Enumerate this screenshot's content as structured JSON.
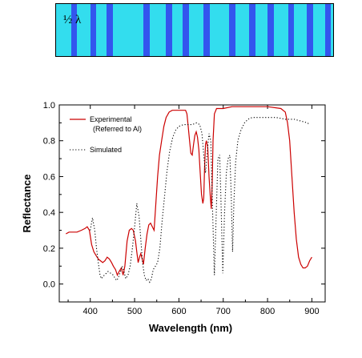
{
  "stack_label": "½ λ",
  "chart_data": {
    "type": "line",
    "title": "",
    "xlabel": "Wavelength (nm)",
    "ylabel": "Reflectance",
    "xlim": [
      330,
      930
    ],
    "ylim": [
      -0.1,
      1.0
    ],
    "xticks": [
      400,
      500,
      600,
      700,
      800,
      900
    ],
    "yticks": [
      0.0,
      0.2,
      0.4,
      0.6,
      0.8,
      1.0
    ],
    "grid": false,
    "legend_position": "top-left",
    "series": [
      {
        "name": "Experimental",
        "name_line2": "(Referred to Al)",
        "style": "solid",
        "color": "#cc0000",
        "points": [
          [
            345,
            0.28
          ],
          [
            352,
            0.29
          ],
          [
            360,
            0.29
          ],
          [
            370,
            0.29
          ],
          [
            380,
            0.3
          ],
          [
            388,
            0.31
          ],
          [
            393,
            0.32
          ],
          [
            398,
            0.3
          ],
          [
            403,
            0.22
          ],
          [
            408,
            0.18
          ],
          [
            413,
            0.16
          ],
          [
            418,
            0.14
          ],
          [
            423,
            0.13
          ],
          [
            428,
            0.12
          ],
          [
            433,
            0.13
          ],
          [
            438,
            0.15
          ],
          [
            443,
            0.14
          ],
          [
            448,
            0.12
          ],
          [
            452,
            0.1
          ],
          [
            457,
            0.08
          ],
          [
            461,
            0.05
          ],
          [
            465,
            0.07
          ],
          [
            470,
            0.09
          ],
          [
            474,
            0.05
          ],
          [
            478,
            0.1
          ],
          [
            483,
            0.24
          ],
          [
            488,
            0.3
          ],
          [
            493,
            0.31
          ],
          [
            497,
            0.3
          ],
          [
            502,
            0.24
          ],
          [
            505,
            0.18
          ],
          [
            508,
            0.12
          ],
          [
            511,
            0.15
          ],
          [
            514,
            0.17
          ],
          [
            517,
            0.14
          ],
          [
            520,
            0.11
          ],
          [
            524,
            0.2
          ],
          [
            528,
            0.28
          ],
          [
            532,
            0.33
          ],
          [
            536,
            0.34
          ],
          [
            540,
            0.32
          ],
          [
            544,
            0.3
          ],
          [
            548,
            0.45
          ],
          [
            552,
            0.6
          ],
          [
            556,
            0.72
          ],
          [
            561,
            0.8
          ],
          [
            566,
            0.88
          ],
          [
            571,
            0.93
          ],
          [
            578,
            0.96
          ],
          [
            585,
            0.97
          ],
          [
            595,
            0.97
          ],
          [
            605,
            0.97
          ],
          [
            615,
            0.97
          ],
          [
            618,
            0.95
          ],
          [
            621,
            0.88
          ],
          [
            624,
            0.8
          ],
          [
            627,
            0.73
          ],
          [
            630,
            0.72
          ],
          [
            633,
            0.78
          ],
          [
            636,
            0.83
          ],
          [
            639,
            0.85
          ],
          [
            642,
            0.82
          ],
          [
            645,
            0.75
          ],
          [
            648,
            0.62
          ],
          [
            651,
            0.5
          ],
          [
            654,
            0.45
          ],
          [
            656,
            0.48
          ],
          [
            658,
            0.66
          ],
          [
            660,
            0.78
          ],
          [
            662,
            0.8
          ],
          [
            665,
            0.76
          ],
          [
            668,
            0.6
          ],
          [
            671,
            0.48
          ],
          [
            673,
            0.42
          ],
          [
            675,
            0.55
          ],
          [
            677,
            0.8
          ],
          [
            680,
            0.95
          ],
          [
            685,
            0.98
          ],
          [
            700,
            0.98
          ],
          [
            720,
            0.99
          ],
          [
            760,
            0.99
          ],
          [
            800,
            0.99
          ],
          [
            830,
            0.98
          ],
          [
            840,
            0.96
          ],
          [
            845,
            0.9
          ],
          [
            850,
            0.8
          ],
          [
            855,
            0.6
          ],
          [
            860,
            0.4
          ],
          [
            865,
            0.25
          ],
          [
            870,
            0.15
          ],
          [
            875,
            0.11
          ],
          [
            880,
            0.09
          ],
          [
            885,
            0.09
          ],
          [
            890,
            0.1
          ],
          [
            895,
            0.13
          ],
          [
            900,
            0.15
          ]
        ]
      },
      {
        "name": "Simulated",
        "style": "dotted",
        "color": "#000000",
        "points": [
          [
            400,
            0.3
          ],
          [
            405,
            0.37
          ],
          [
            410,
            0.3
          ],
          [
            414,
            0.2
          ],
          [
            418,
            0.12
          ],
          [
            422,
            0.05
          ],
          [
            425,
            0.03
          ],
          [
            428,
            0.04
          ],
          [
            432,
            0.05
          ],
          [
            436,
            0.06
          ],
          [
            440,
            0.07
          ],
          [
            446,
            0.06
          ],
          [
            452,
            0.05
          ],
          [
            456,
            0.03
          ],
          [
            460,
            0.02
          ],
          [
            464,
            0.04
          ],
          [
            468,
            0.07
          ],
          [
            472,
            0.1
          ],
          [
            476,
            0.07
          ],
          [
            480,
            0.03
          ],
          [
            485,
            0.05
          ],
          [
            490,
            0.1
          ],
          [
            495,
            0.2
          ],
          [
            500,
            0.32
          ],
          [
            505,
            0.45
          ],
          [
            510,
            0.38
          ],
          [
            514,
            0.25
          ],
          [
            518,
            0.12
          ],
          [
            522,
            0.05
          ],
          [
            526,
            0.02
          ],
          [
            530,
            0.03
          ],
          [
            534,
            0.01
          ],
          [
            538,
            0.03
          ],
          [
            542,
            0.08
          ],
          [
            547,
            0.1
          ],
          [
            552,
            0.12
          ],
          [
            557,
            0.2
          ],
          [
            562,
            0.35
          ],
          [
            568,
            0.5
          ],
          [
            573,
            0.63
          ],
          [
            579,
            0.74
          ],
          [
            586,
            0.82
          ],
          [
            593,
            0.86
          ],
          [
            600,
            0.88
          ],
          [
            610,
            0.89
          ],
          [
            620,
            0.89
          ],
          [
            630,
            0.89
          ],
          [
            640,
            0.9
          ],
          [
            647,
            0.89
          ],
          [
            652,
            0.84
          ],
          [
            656,
            0.72
          ],
          [
            660,
            0.62
          ],
          [
            664,
            0.74
          ],
          [
            668,
            0.84
          ],
          [
            672,
            0.8
          ],
          [
            676,
            0.4
          ],
          [
            680,
            0.05
          ],
          [
            684,
            0.38
          ],
          [
            688,
            0.7
          ],
          [
            692,
            0.72
          ],
          [
            695,
            0.45
          ],
          [
            699,
            0.06
          ],
          [
            703,
            0.4
          ],
          [
            707,
            0.62
          ],
          [
            711,
            0.7
          ],
          [
            715,
            0.72
          ],
          [
            718,
            0.5
          ],
          [
            721,
            0.18
          ],
          [
            724,
            0.45
          ],
          [
            728,
            0.68
          ],
          [
            733,
            0.8
          ],
          [
            740,
            0.86
          ],
          [
            748,
            0.9
          ],
          [
            756,
            0.92
          ],
          [
            765,
            0.93
          ],
          [
            780,
            0.93
          ],
          [
            800,
            0.93
          ],
          [
            820,
            0.93
          ],
          [
            840,
            0.92
          ],
          [
            860,
            0.92
          ],
          [
            875,
            0.91
          ],
          [
            890,
            0.9
          ],
          [
            895,
            0.89
          ]
        ]
      }
    ]
  }
}
